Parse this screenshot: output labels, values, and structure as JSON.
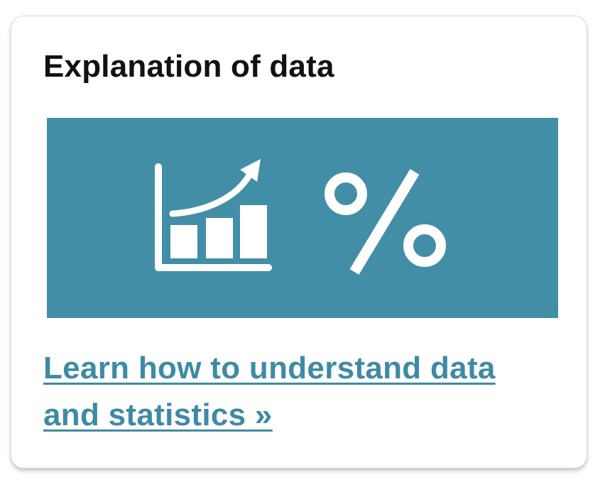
{
  "card": {
    "title": "Explanation of data",
    "link_label": "Learn how to understand data and statistics »"
  },
  "hero": {
    "icons": [
      "growth-chart-icon",
      "percent-icon"
    ],
    "background_color": "#438ea7",
    "icon_color": "#ffffff"
  },
  "colors": {
    "link": "#3f8aa3",
    "title": "#111111",
    "card_border": "#dcdcdc"
  }
}
